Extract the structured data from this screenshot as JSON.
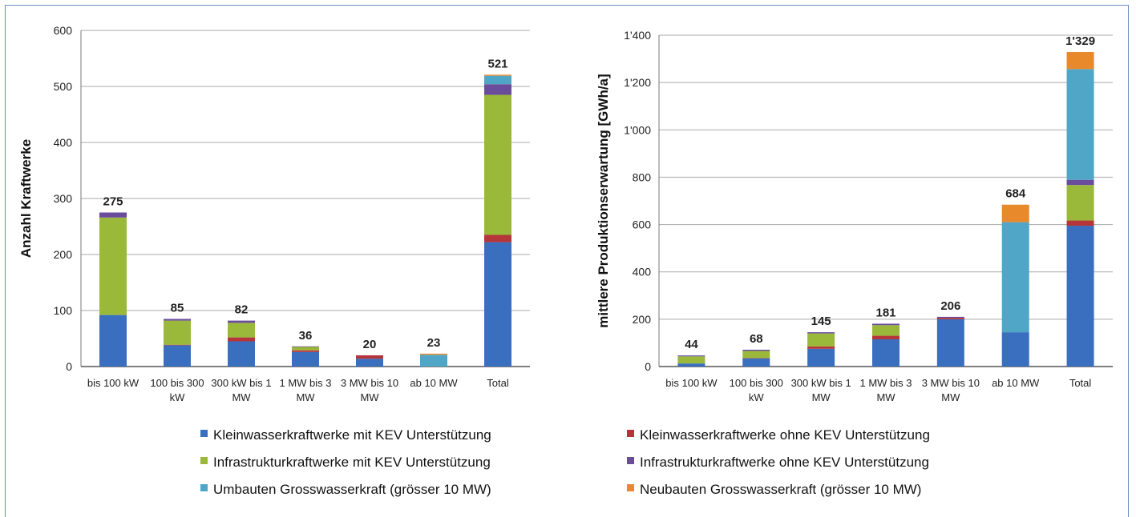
{
  "legend": [
    {
      "label": "Kleinwasserkraftwerke mit KEV Unterstützung",
      "color": "#3a6fbf"
    },
    {
      "label": "Kleinwasserkraftwerke ohne KEV Unterstützung",
      "color": "#b5353a"
    },
    {
      "label": "Infrastrukturkraftwerke mit KEV Unterstützung",
      "color": "#9ab93a"
    },
    {
      "label": "Infrastrukturkraftwerke ohne KEV Unterstützung",
      "color": "#6a4c9c"
    },
    {
      "label": "Umbauten Grosswasserkraft (grösser 10 MW)",
      "color": "#4fa6c7"
    },
    {
      "label": "Neubauten Grosswasserkraft (grösser 10 MW)",
      "color": "#e8892c"
    }
  ],
  "chart_data": [
    {
      "type": "bar",
      "stacked": true,
      "ylabel": "Anzahl Kraftwerke",
      "ylim": [
        0,
        600
      ],
      "yticks": [
        "0",
        "100",
        "200",
        "300",
        "400",
        "500",
        "600"
      ],
      "categories": [
        [
          "bis 100 kW"
        ],
        [
          "100 bis 300",
          "kW"
        ],
        [
          "300 kW bis 1",
          "MW"
        ],
        [
          "1 MW bis 3",
          "MW"
        ],
        [
          "3 MW bis 10",
          "MW"
        ],
        [
          "ab 10 MW"
        ],
        [
          "Total"
        ]
      ],
      "totals": [
        "275",
        "85",
        "82",
        "36",
        "20",
        "23",
        "521"
      ],
      "series": [
        {
          "name": "Kleinwasserkraftwerke mit KEV Unterstützung",
          "values": [
            92,
            38,
            45,
            26,
            14,
            0,
            222
          ]
        },
        {
          "name": "Kleinwasserkraftwerke ohne KEV Unterstützung",
          "values": [
            0,
            1,
            7,
            3,
            6,
            0,
            13
          ]
        },
        {
          "name": "Infrastrukturkraftwerke mit KEV Unterstützung",
          "values": [
            174,
            43,
            26,
            6,
            0,
            0,
            250
          ]
        },
        {
          "name": "Infrastrukturkraftwerke ohne KEV Unterstützung",
          "values": [
            9,
            3,
            4,
            1,
            0,
            0,
            19
          ]
        },
        {
          "name": "Umbauten Grosswasserkraft (grösser 10 MW)",
          "values": [
            0,
            0,
            0,
            0,
            0,
            21,
            15
          ]
        },
        {
          "name": "Neubauten Grosswasserkraft (grösser 10 MW)",
          "values": [
            0,
            0,
            0,
            0,
            0,
            2,
            2
          ]
        }
      ]
    },
    {
      "type": "bar",
      "stacked": true,
      "ylabel": "mittlere Produktionserwartung [GWh/a]",
      "ylim": [
        0,
        1400
      ],
      "yticks": [
        "0",
        "200",
        "400",
        "600",
        "800",
        "1'000",
        "1'200",
        "1'400"
      ],
      "categories": [
        [
          "bis 100 kW"
        ],
        [
          "100 bis 300",
          "kW"
        ],
        [
          "300 kW bis 1",
          "MW"
        ],
        [
          "1 MW bis 3",
          "MW"
        ],
        [
          "3 MW bis 10",
          "MW"
        ],
        [
          "ab 10 MW"
        ],
        [
          "Total"
        ]
      ],
      "totals": [
        "44",
        "68",
        "145",
        "181",
        "206",
        "684",
        "1'329"
      ],
      "series": [
        {
          "name": "Kleinwasserkraftwerke mit KEV Unterstützung",
          "values": [
            13,
            35,
            75,
            115,
            200,
            145,
            595
          ]
        },
        {
          "name": "Kleinwasserkraftwerke ohne KEV Unterstützung",
          "values": [
            0,
            1,
            10,
            15,
            6,
            0,
            22
          ]
        },
        {
          "name": "Infrastrukturkraftwerke mit KEV Unterstützung",
          "values": [
            30,
            30,
            55,
            45,
            0,
            0,
            150
          ]
        },
        {
          "name": "Infrastrukturkraftwerke ohne KEV Unterstützung",
          "values": [
            4,
            5,
            5,
            6,
            4,
            0,
            22
          ]
        },
        {
          "name": "Umbauten Grosswasserkraft (grösser 10 MW)",
          "values": [
            0,
            0,
            0,
            0,
            0,
            465,
            468
          ]
        },
        {
          "name": "Neubauten Grosswasserkraft (grösser 10 MW)",
          "values": [
            0,
            0,
            0,
            0,
            0,
            74,
            72
          ]
        }
      ]
    }
  ]
}
